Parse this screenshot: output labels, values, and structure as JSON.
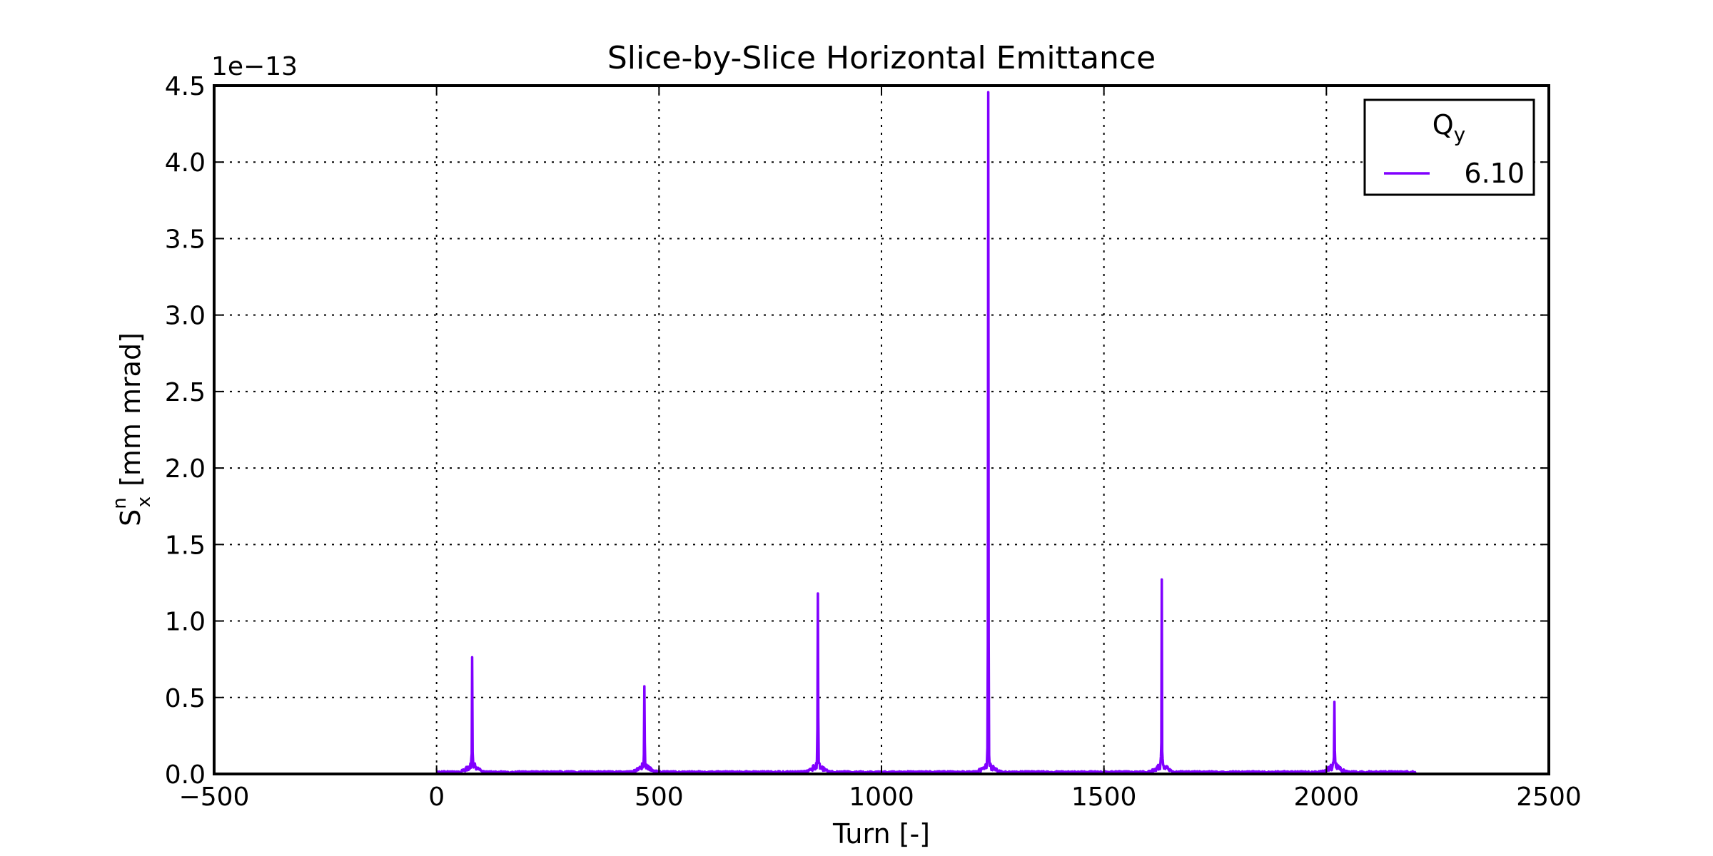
{
  "chart_data": {
    "type": "line",
    "title": "Slice-by-Slice Horizontal Emittance",
    "xlabel": "Turn [-]",
    "ylabel": {
      "symbol": "S",
      "superscript": "n",
      "subscript": "x",
      "unit": "[mm mrad]"
    },
    "y_offset_text": "1e−13",
    "y_scale": 1e-13,
    "xlim": [
      -500,
      2500
    ],
    "ylim": [
      0,
      4.5
    ],
    "xticks": [
      -500,
      0,
      500,
      1000,
      1500,
      2000,
      2500
    ],
    "xtick_labels": [
      "−500",
      "0",
      "500",
      "1000",
      "1500",
      "2000",
      "2500"
    ],
    "yticks": [
      0,
      0.5,
      1.0,
      1.5,
      2.0,
      2.5,
      3.0,
      3.5,
      4.0,
      4.5
    ],
    "ytick_labels": [
      "0.0",
      "0.5",
      "1.0",
      "1.5",
      "2.0",
      "2.5",
      "3.0",
      "3.5",
      "4.0",
      "4.5"
    ],
    "grid": true,
    "legend": {
      "title_symbol": "Q",
      "title_subscript": "y",
      "placement": "top-right"
    },
    "series": [
      {
        "name": "6.10",
        "color": "#8000ff",
        "x_range": [
          0,
          2200
        ],
        "peaks": [
          {
            "x": 80,
            "y": 0.72
          },
          {
            "x": 467,
            "y": 0.52
          },
          {
            "x": 857,
            "y": 1.11
          },
          {
            "x": 1240,
            "y": 4.41
          },
          {
            "x": 1630,
            "y": 1.23
          },
          {
            "x": 2018,
            "y": 0.42
          }
        ]
      }
    ]
  }
}
